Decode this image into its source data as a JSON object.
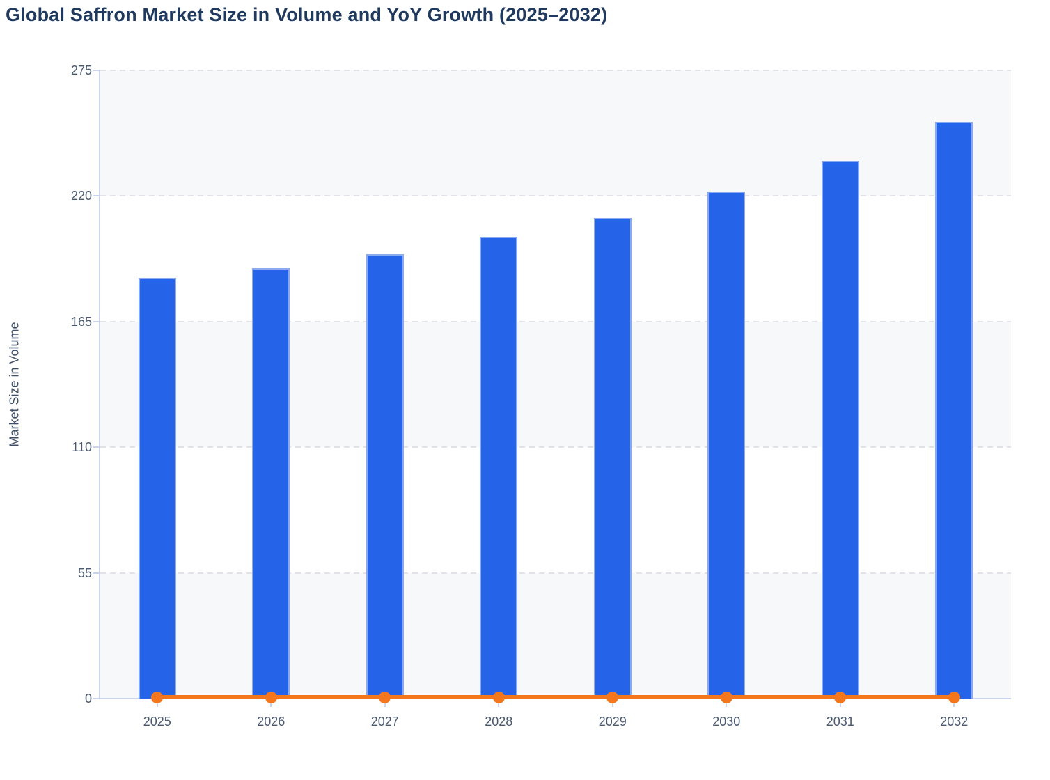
{
  "title": "Global Saffron Market Size in Volume and YoY Growth (2025–2032)",
  "chart_data": {
    "type": "bar",
    "title": "Global Saffron Market Size in Volume and YoY Growth (2025–2032)",
    "categories": [
      "2025",
      "2026",
      "2027",
      "2028",
      "2029",
      "2030",
      "2031",
      "2032"
    ],
    "series": [
      {
        "name": "Market Size in Volume",
        "type": "column",
        "color": "#2563e8",
        "values": [
          184,
          188.5,
          194.5,
          202,
          210.5,
          221.8,
          235.5,
          252.3
        ]
      },
      {
        "name": "YoY Growth",
        "type": "line",
        "color": "#f4761d",
        "values": [
          0.5,
          0.5,
          0.5,
          0.5,
          0.5,
          0.5,
          0.5,
          0.5
        ]
      }
    ],
    "xlabel": "",
    "ylabel": "Market Size in Volume",
    "yticks": [
      0,
      55,
      110,
      165,
      220,
      275
    ],
    "ytick_labels": [
      "0",
      "55",
      "110",
      "165",
      "220",
      "275"
    ],
    "ylim": [
      0,
      275
    ],
    "grid": "horizontal-dashed",
    "plot_bands": "alternating-light-stripes",
    "legend_position": "none"
  },
  "colors": {
    "title_text": "#20395e",
    "bar": "#2563e8",
    "bar_edge": "#8aa9f1",
    "line": "#f4761d",
    "axis_line": "#ccd3ec",
    "gridline": "#e1e3e9",
    "band": "#f7f8fa",
    "tick_label": "#4a5970",
    "axis_title_text": "#3f4e66"
  }
}
